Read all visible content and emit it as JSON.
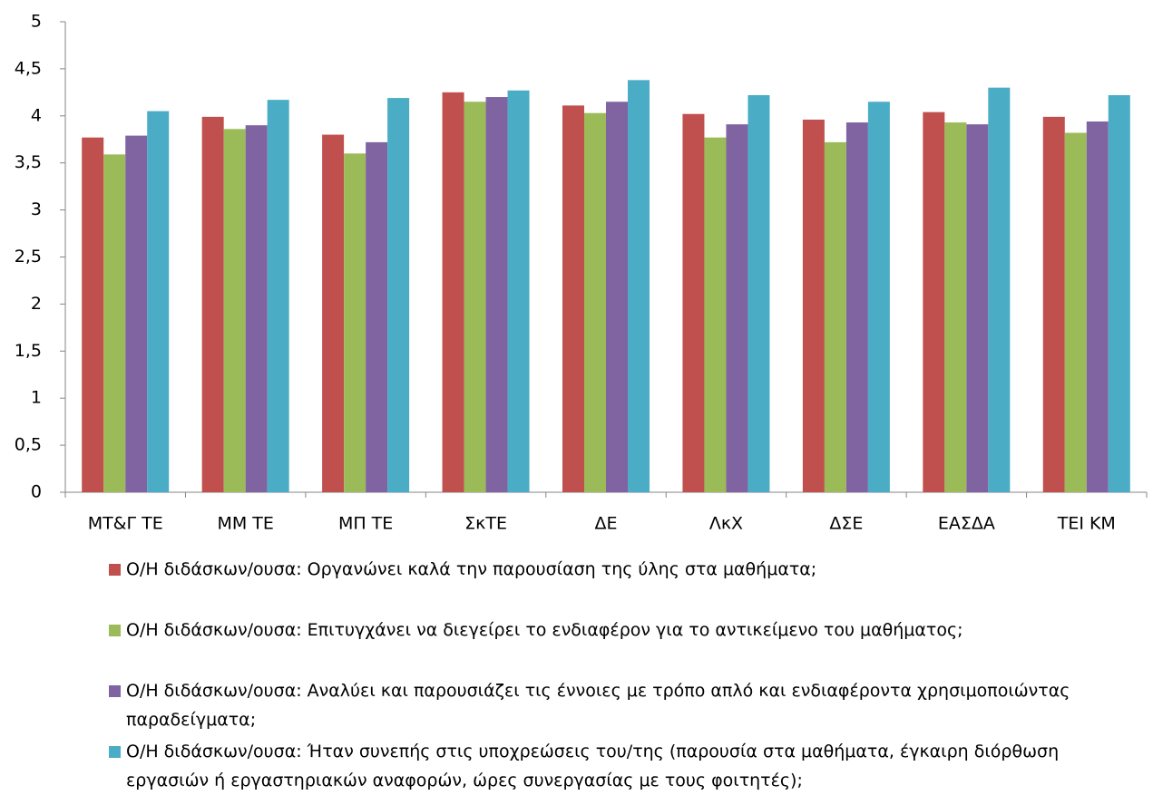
{
  "chart_data": {
    "type": "bar",
    "categories": [
      "ΜΤ&Γ ΤΕ",
      "ΜΜ ΤΕ",
      "ΜΠ ΤΕ",
      "ΣκΤΕ",
      "ΔΕ",
      "ΛκΧ",
      "ΔΣΕ",
      "ΕΑΣΔΑ",
      "ΤΕΙ ΚΜ"
    ],
    "series": [
      {
        "name": "Ο/Η διδάσκων/ουσα: Οργανώνει καλά την παρουσίαση της ύλης στα μαθήματα;",
        "color": "#c0504d",
        "values": [
          3.77,
          3.99,
          3.8,
          4.25,
          4.11,
          4.02,
          3.96,
          4.04,
          3.99
        ]
      },
      {
        "name": "Ο/Η διδάσκων/ουσα: Επιτυγχάνει να διεγείρει το ενδιαφέρον για το αντικείμενο του μαθήματος;",
        "color": "#9bbb59",
        "values": [
          3.59,
          3.86,
          3.6,
          4.15,
          4.03,
          3.77,
          3.72,
          3.93,
          3.82
        ]
      },
      {
        "name": "Ο/Η διδάσκων/ουσα: Αναλύει και παρουσιάζει τις έννοιες με τρόπο απλό και ενδιαφέροντα χρησιμοποιώντας παραδείγματα;",
        "color": "#8064a2",
        "values": [
          3.79,
          3.9,
          3.72,
          4.2,
          4.15,
          3.91,
          3.93,
          3.91,
          3.94
        ]
      },
      {
        "name": "Ο/Η διδάσκων/ουσα: Ήταν συνεπής στις υποχρεώσεις του/της (παρουσία στα μαθήματα, έγκαιρη διόρθωση εργασιών ή εργαστηριακών αναφορών, ώρες συνεργασίας με τους φοιτητές);",
        "color": "#4bacc6",
        "values": [
          4.05,
          4.17,
          4.19,
          4.27,
          4.38,
          4.22,
          4.15,
          4.3,
          4.22
        ]
      }
    ],
    "ylim": [
      0,
      5
    ],
    "yticks": [
      0,
      {
        "value": 0.5,
        "label": "0,5"
      },
      1,
      {
        "value": 1.5,
        "label": "1,5"
      },
      2,
      {
        "value": 2.5,
        "label": "2,5"
      },
      3,
      {
        "value": 3.5,
        "label": "3,5"
      },
      4,
      {
        "value": 4.5,
        "label": "4,5"
      },
      5
    ],
    "grid": false
  }
}
